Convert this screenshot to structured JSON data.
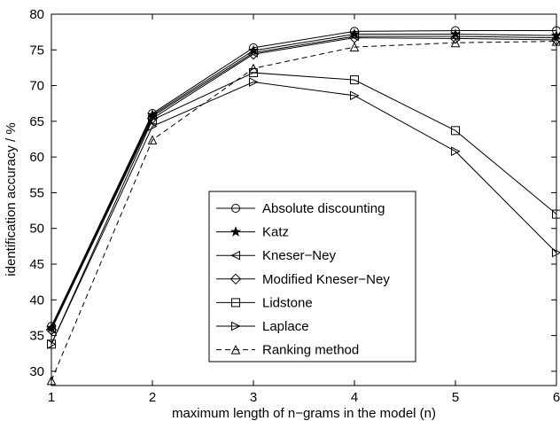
{
  "chart_data": {
    "type": "line",
    "title": "",
    "xlabel": "maximum length of n−grams in the model (n)",
    "ylabel": "identification accuracy / %",
    "x": [
      1,
      2,
      3,
      4,
      5,
      6
    ],
    "xlim": [
      1,
      6
    ],
    "ylim": [
      28,
      80
    ],
    "xticks": [
      1,
      2,
      3,
      4,
      5,
      6
    ],
    "yticks": [
      30,
      35,
      40,
      45,
      50,
      55,
      60,
      65,
      70,
      75,
      80
    ],
    "grid": false,
    "legend_position": "center-right",
    "series": [
      {
        "name": "Absolute discounting",
        "marker": "circle",
        "dash": false,
        "values": [
          36.3,
          66.1,
          75.3,
          77.6,
          77.7,
          77.7
        ]
      },
      {
        "name": "Katz",
        "marker": "star",
        "dash": false,
        "values": [
          36.1,
          65.9,
          74.9,
          77.2,
          77.2,
          77.0
        ]
      },
      {
        "name": "Kneser−Ney",
        "marker": "triangle-left",
        "dash": false,
        "values": [
          35.9,
          65.7,
          74.6,
          76.9,
          76.9,
          76.7
        ]
      },
      {
        "name": "Modified Kneser−Ney",
        "marker": "diamond",
        "dash": false,
        "values": [
          35.8,
          65.4,
          74.4,
          76.7,
          76.6,
          76.4
        ]
      },
      {
        "name": "Lidstone",
        "marker": "square",
        "dash": false,
        "values": [
          33.8,
          65.2,
          71.8,
          70.8,
          63.7,
          52.0
        ]
      },
      {
        "name": "Laplace",
        "marker": "triangle-right",
        "dash": false,
        "values": [
          33.8,
          64.3,
          70.5,
          68.6,
          60.8,
          46.6
        ]
      },
      {
        "name": "Ranking method",
        "marker": "triangle-up",
        "dash": true,
        "values": [
          28.7,
          62.4,
          72.4,
          75.4,
          76.0,
          76.2
        ]
      }
    ]
  }
}
